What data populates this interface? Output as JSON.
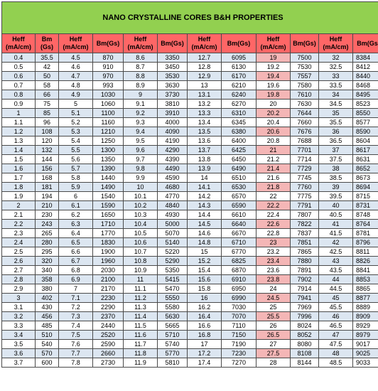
{
  "title": "NANO CRYSTALLINE CORES B&H PROPERTIES",
  "headers": [
    "Heff (mA/cm)",
    "Bm (Gs)",
    "Heff (mA/cm)",
    "Bm(Gs)",
    "Heff (mA/cm)",
    "Bm(Gs)",
    "Heff (mA/cm)",
    "Bm(Gs)",
    "Heff (mA/cm)",
    "Bm(Gs)",
    "Heff (mA/cm)",
    "Bm(Gs)"
  ],
  "rows": [
    [
      "0.4",
      "35.5",
      "4.5",
      "870",
      "8.6",
      "3350",
      "12.7",
      "6095",
      "19",
      "7500",
      "32",
      "8384"
    ],
    [
      "0.5",
      "42",
      "4.6",
      "910",
      "8.7",
      "3450",
      "12.8",
      "6130",
      "19.2",
      "7530",
      "32.5",
      "8412"
    ],
    [
      "0.6",
      "50",
      "4.7",
      "970",
      "8.8",
      "3530",
      "12.9",
      "6170",
      "19.4",
      "7557",
      "33",
      "8440"
    ],
    [
      "0.7",
      "58",
      "4.8",
      "993",
      "8.9",
      "3630",
      "13",
      "6210",
      "19.6",
      "7580",
      "33.5",
      "8468"
    ],
    [
      "0.8",
      "66",
      "4.9",
      "1030",
      "9",
      "3730",
      "13.1",
      "6240",
      "19.8",
      "7610",
      "34",
      "8495"
    ],
    [
      "0.9",
      "75",
      "5",
      "1060",
      "9.1",
      "3810",
      "13.2",
      "6270",
      "20",
      "7630",
      "34.5",
      "8523"
    ],
    [
      "1",
      "85",
      "5.1",
      "1100",
      "9.2",
      "3910",
      "13.3",
      "6310",
      "20.2",
      "7644",
      "35",
      "8550"
    ],
    [
      "1.1",
      "96",
      "5.2",
      "1160",
      "9.3",
      "4000",
      "13.4",
      "6345",
      "20.4",
      "7660",
      "35.5",
      "8577"
    ],
    [
      "1.2",
      "108",
      "5.3",
      "1210",
      "9.4",
      "4090",
      "13.5",
      "6380",
      "20.6",
      "7676",
      "36",
      "8590"
    ],
    [
      "1.3",
      "120",
      "5.4",
      "1250",
      "9.5",
      "4190",
      "13.6",
      "6400",
      "20.8",
      "7688",
      "36.5",
      "8604"
    ],
    [
      "1.4",
      "132",
      "5.5",
      "1300",
      "9.6",
      "4290",
      "13.7",
      "6425",
      "21",
      "7701",
      "37",
      "8617"
    ],
    [
      "1.5",
      "144",
      "5.6",
      "1350",
      "9.7",
      "4390",
      "13.8",
      "6450",
      "21.2",
      "7714",
      "37.5",
      "8631"
    ],
    [
      "1.6",
      "156",
      "5.7",
      "1390",
      "9.8",
      "4490",
      "13.9",
      "6490",
      "21.4",
      "7729",
      "38",
      "8652"
    ],
    [
      "1.7",
      "168",
      "5.8",
      "1440",
      "9.9",
      "4590",
      "14",
      "6510",
      "21.6",
      "7745",
      "38.5",
      "8673"
    ],
    [
      "1.8",
      "181",
      "5.9",
      "1490",
      "10",
      "4680",
      "14.1",
      "6530",
      "21.8",
      "7760",
      "39",
      "8694"
    ],
    [
      "1.9",
      "194",
      "6",
      "1540",
      "10.1",
      "4770",
      "14.2",
      "6570",
      "22",
      "7775",
      "39.5",
      "8715"
    ],
    [
      "2",
      "210",
      "6.1",
      "1590",
      "10.2",
      "4840",
      "14.3",
      "6590",
      "22.2",
      "7791",
      "40",
      "8731"
    ],
    [
      "2.1",
      "230",
      "6.2",
      "1650",
      "10.3",
      "4930",
      "14.4",
      "6610",
      "22.4",
      "7807",
      "40.5",
      "8748"
    ],
    [
      "2.2",
      "243",
      "6.3",
      "1710",
      "10.4",
      "5000",
      "14.5",
      "6640",
      "22.6",
      "7822",
      "41",
      "8764"
    ],
    [
      "2.3",
      "265",
      "6.4",
      "1770",
      "10.5",
      "5070",
      "14.6",
      "6670",
      "22.8",
      "7837",
      "41.5",
      "8781"
    ],
    [
      "2.4",
      "280",
      "6.5",
      "1830",
      "10.6",
      "5140",
      "14.8",
      "6710",
      "23",
      "7851",
      "42",
      "8796"
    ],
    [
      "2.5",
      "295",
      "6.6",
      "1900",
      "10.7",
      "5220",
      "15",
      "6770",
      "23.2",
      "7865",
      "42.5",
      "8811"
    ],
    [
      "2.6",
      "320",
      "6.7",
      "1960",
      "10.8",
      "5290",
      "15.2",
      "6825",
      "23.4",
      "7880",
      "43",
      "8826"
    ],
    [
      "2.7",
      "340",
      "6.8",
      "2030",
      "10.9",
      "5350",
      "15.4",
      "6870",
      "23.6",
      "7891",
      "43.5",
      "8841"
    ],
    [
      "2.8",
      "358",
      "6.9",
      "2100",
      "11",
      "5415",
      "15.6",
      "6910",
      "23.8",
      "7902",
      "44",
      "8853"
    ],
    [
      "2.9",
      "380",
      "7",
      "2170",
      "11.1",
      "5470",
      "15.8",
      "6950",
      "24",
      "7914",
      "44.5",
      "8865"
    ],
    [
      "3",
      "402",
      "7.1",
      "2230",
      "11.2",
      "5550",
      "16",
      "6990",
      "24.5",
      "7941",
      "45",
      "8877"
    ],
    [
      "3.1",
      "430",
      "7.2",
      "2290",
      "11.3",
      "5580",
      "16.2",
      "7030",
      "25",
      "7969",
      "45.5",
      "8889"
    ],
    [
      "3.2",
      "456",
      "7.3",
      "2370",
      "11.4",
      "5630",
      "16.4",
      "7070",
      "25.5",
      "7996",
      "46",
      "8909"
    ],
    [
      "3.3",
      "485",
      "7.4",
      "2440",
      "11.5",
      "5665",
      "16.6",
      "7110",
      "26",
      "8024",
      "46.5",
      "8929"
    ],
    [
      "3.4",
      "510",
      "7.5",
      "2520",
      "11.6",
      "5710",
      "16.8",
      "7150",
      "26.5",
      "8052",
      "47",
      "8979"
    ],
    [
      "3.5",
      "540",
      "7.6",
      "2590",
      "11.7",
      "5740",
      "17",
      "7190",
      "27",
      "8080",
      "47.5",
      "9017"
    ],
    [
      "3.6",
      "570",
      "7.7",
      "2660",
      "11.8",
      "5770",
      "17.2",
      "7230",
      "27.5",
      "8108",
      "48",
      "9025"
    ],
    [
      "3.7",
      "600",
      "7.8",
      "2730",
      "11.9",
      "5810",
      "17.4",
      "7270",
      "28",
      "8144",
      "48.5",
      "9033"
    ]
  ],
  "colors": {
    "title_bg": "#92d050",
    "header_bg": "#ff6666",
    "row_blue": "#dce6f1",
    "row_white": "#ffffff",
    "heff_highlight": "#f4b6b6"
  }
}
